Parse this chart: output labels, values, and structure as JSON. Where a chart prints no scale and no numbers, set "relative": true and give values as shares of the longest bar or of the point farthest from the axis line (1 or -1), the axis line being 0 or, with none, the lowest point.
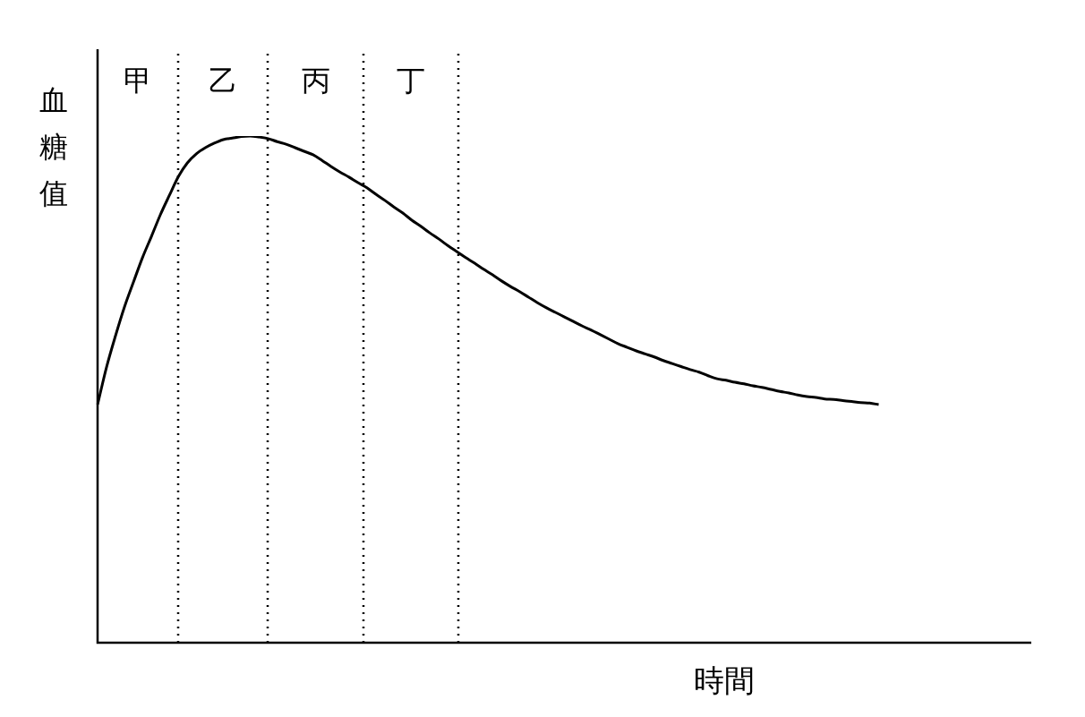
{
  "chart_data": {
    "type": "line",
    "xlabel": "時間",
    "ylabel": "血糖值",
    "relative": true,
    "legend": false,
    "marker": "none",
    "line_style": "solid",
    "annotations": [
      "甲",
      "乙",
      "丙",
      "丁"
    ],
    "categories": [
      null,
      null,
      null,
      null,
      null,
      null,
      null,
      null,
      null,
      null,
      null,
      null,
      null,
      null,
      null,
      null,
      null,
      null,
      null,
      null,
      null,
      null,
      null,
      null,
      null,
      null,
      null,
      null,
      null,
      null,
      null,
      null,
      null,
      null,
      null,
      null,
      null,
      null,
      null,
      null,
      null,
      null,
      null,
      null,
      null,
      null,
      null,
      null,
      null,
      null,
      null,
      null,
      null,
      null,
      null,
      null,
      null,
      null,
      null,
      null,
      null,
      null,
      null,
      null,
      null,
      null,
      null,
      null,
      null,
      null,
      null,
      null,
      null,
      null,
      null,
      null,
      null,
      null,
      null,
      null,
      null,
      null,
      null,
      null,
      null,
      null,
      null,
      null,
      null,
      null,
      null,
      null,
      null,
      null,
      null,
      null,
      null,
      null,
      null,
      null,
      null,
      null,
      null,
      null,
      null
    ],
    "series": [
      {
        "color": "#000000",
        "values": [
          0.47,
          0.544,
          0.606,
          0.663,
          0.712,
          0.76,
          0.802,
          0.845,
          0.883,
          0.92,
          0.947,
          0.965,
          0.977,
          0.986,
          0.993,
          0.996,
          0.999,
          1.0,
          0.998,
          0.995,
          0.989,
          0.984,
          0.977,
          0.97,
          0.963,
          0.952,
          0.94,
          0.929,
          0.919,
          0.908,
          0.898,
          0.885,
          0.873,
          0.86,
          0.848,
          0.834,
          0.822,
          0.809,
          0.797,
          0.784,
          0.772,
          0.76,
          0.749,
          0.737,
          0.726,
          0.714,
          0.703,
          0.693,
          0.682,
          0.671,
          0.661,
          0.652,
          0.643,
          0.634,
          0.625,
          0.617,
          0.608,
          0.599,
          0.59,
          0.583,
          0.576,
          0.57,
          0.564,
          0.557,
          0.551,
          0.545,
          0.539,
          0.534,
          0.527,
          0.521,
          0.518,
          0.514,
          0.511,
          0.507,
          0.504,
          0.5,
          0.496,
          0.493,
          0.489,
          0.486,
          0.484,
          0.481,
          0.48,
          0.478,
          0.476,
          0.474,
          0.473,
          0.47,
          null,
          null,
          null,
          null,
          null,
          null,
          null,
          null,
          null,
          null,
          null,
          null,
          null,
          null,
          null,
          null,
          null
        ]
      }
    ]
  }
}
